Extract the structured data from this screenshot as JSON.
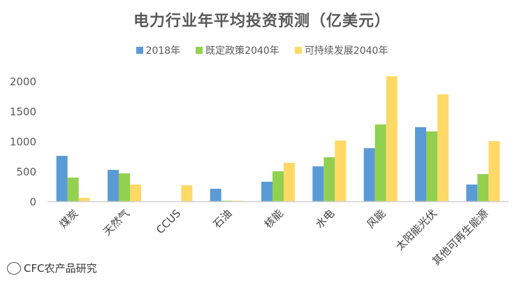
{
  "chart_data": {
    "type": "bar",
    "title": "电力行业年平均投资预测（亿美元）",
    "categories": [
      "煤炭",
      "天然气",
      "CCUS",
      "石油",
      "核能",
      "水电",
      "风能",
      "太阳能光伏",
      "其他可再生能源"
    ],
    "series": [
      {
        "name": "2018年",
        "color": "#5B9BD5",
        "values": [
          756,
          523,
          0,
          209,
          326,
          581,
          884,
          1233,
          279
        ]
      },
      {
        "name": "既定政策2040年",
        "color": "#92D050",
        "values": [
          395,
          465,
          0,
          10,
          500,
          733,
          1279,
          1163,
          453
        ]
      },
      {
        "name": "可持续发展2040年",
        "color": "#FFD966",
        "values": [
          58,
          279,
          267,
          10,
          640,
          1012,
          2081,
          1779,
          1000
        ]
      }
    ],
    "xlabel": "",
    "ylabel": "",
    "ylim": [
      0,
      2000
    ],
    "yticks": [
      "0",
      "500",
      "1000",
      "1500",
      "2000"
    ],
    "grid": false,
    "legend": "top"
  },
  "watermark": "CFC农产品研究"
}
